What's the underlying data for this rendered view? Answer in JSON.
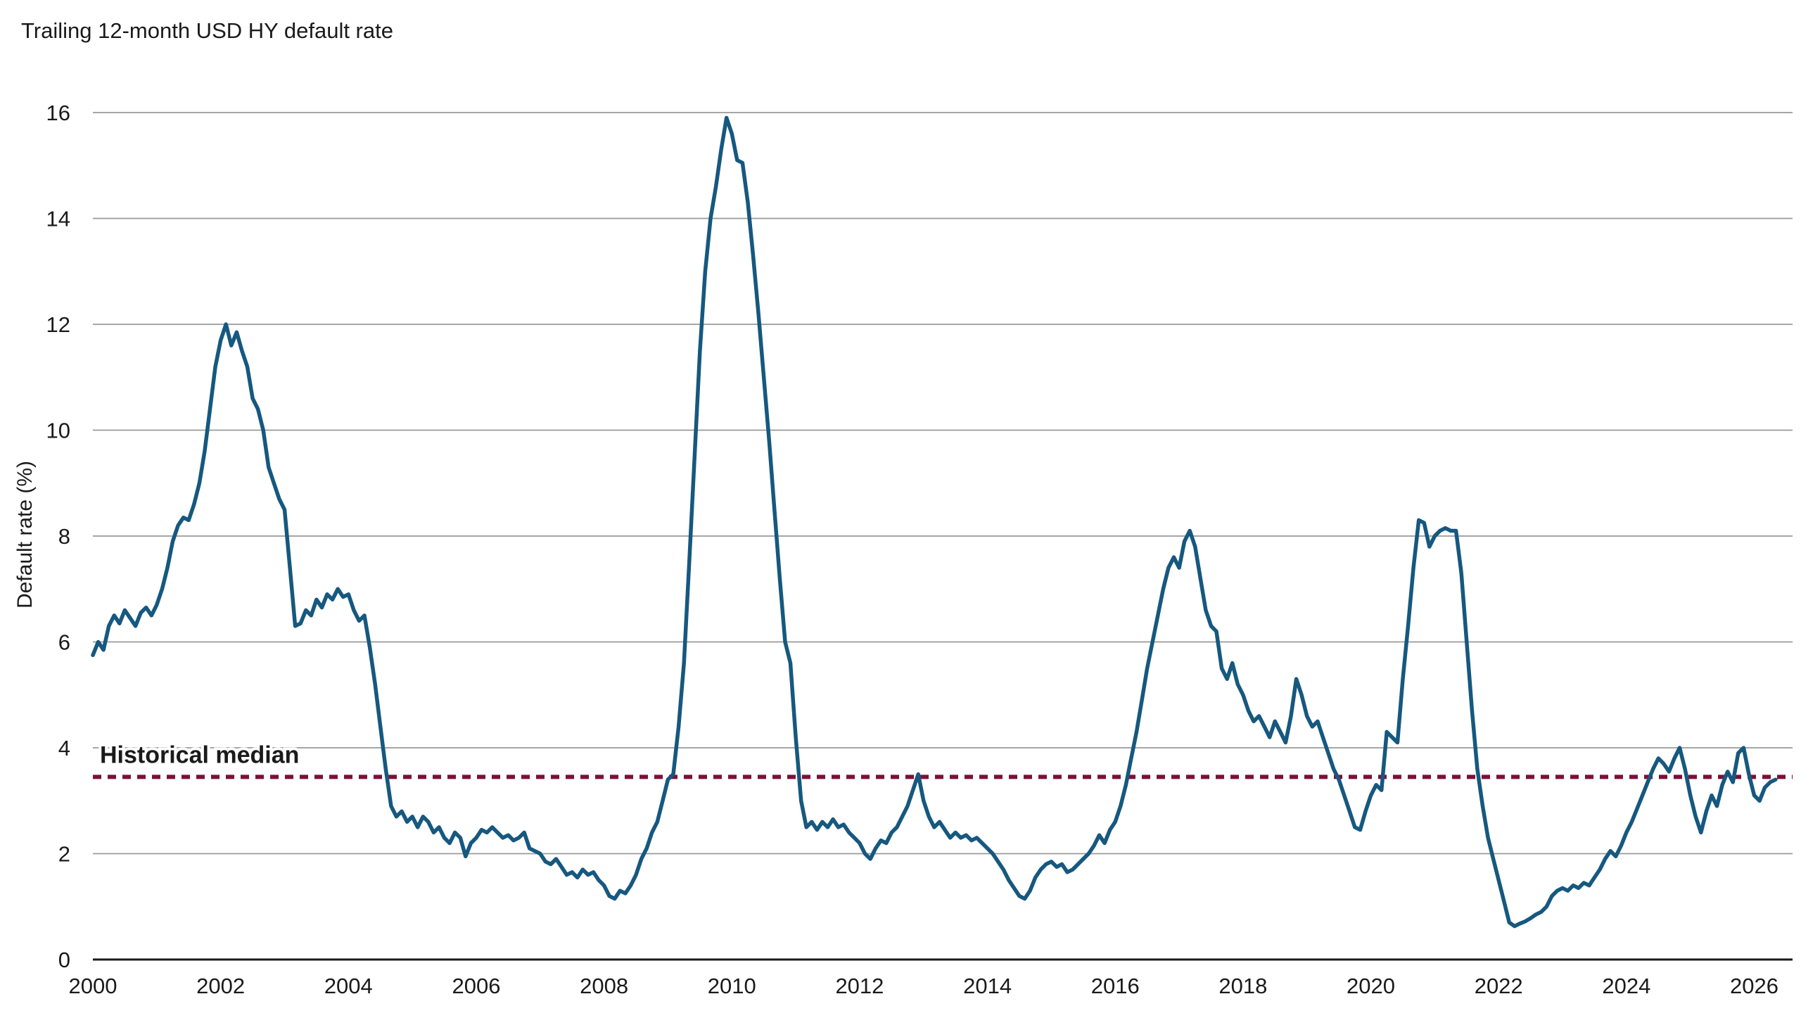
{
  "chart": {
    "title": "Trailing 12-month USD HY default rate",
    "ylabel": "Default rate (%)"
  },
  "chart_data": {
    "type": "line",
    "title": "Trailing 12-month USD HY default rate",
    "xlabel": "",
    "ylabel": "Default rate (%)",
    "xlim": [
      2000,
      2026.6
    ],
    "ylim": [
      0,
      16
    ],
    "x_ticks": [
      2000,
      2002,
      2004,
      2006,
      2008,
      2010,
      2012,
      2014,
      2016,
      2018,
      2020,
      2022,
      2024,
      2026
    ],
    "y_ticks": [
      0,
      2,
      4,
      6,
      8,
      10,
      12,
      14,
      16
    ],
    "grid": "horizontal",
    "legend": "none",
    "grid_color": "#9a9a9a",
    "axis_color": "#1a1a1a",
    "text_color": "#1a1a1a",
    "x_start_year": 2000,
    "x_interval_months": 1,
    "reference_line": {
      "label": "Historical median",
      "value": 3.45,
      "color": "#7c1038",
      "style": "dashed"
    },
    "series": [
      {
        "name": "Trailing 12-month USD HY default rate",
        "color": "#16587f",
        "values": [
          5.75,
          6.0,
          5.85,
          6.3,
          6.5,
          6.35,
          6.6,
          6.45,
          6.3,
          6.55,
          6.65,
          6.5,
          6.7,
          7.0,
          7.4,
          7.9,
          8.2,
          8.35,
          8.3,
          8.6,
          9.0,
          9.6,
          10.4,
          11.2,
          11.7,
          12.0,
          11.6,
          11.85,
          11.5,
          11.2,
          10.6,
          10.4,
          10.0,
          9.3,
          9.0,
          8.7,
          8.5,
          7.4,
          6.3,
          6.35,
          6.6,
          6.5,
          6.8,
          6.65,
          6.9,
          6.8,
          7.0,
          6.85,
          6.9,
          6.6,
          6.4,
          6.5,
          5.9,
          5.2,
          4.4,
          3.6,
          2.9,
          2.7,
          2.8,
          2.6,
          2.7,
          2.5,
          2.7,
          2.6,
          2.4,
          2.5,
          2.3,
          2.2,
          2.4,
          2.3,
          1.95,
          2.2,
          2.3,
          2.45,
          2.4,
          2.5,
          2.4,
          2.3,
          2.35,
          2.25,
          2.3,
          2.4,
          2.1,
          2.05,
          2.0,
          1.85,
          1.8,
          1.9,
          1.75,
          1.6,
          1.65,
          1.55,
          1.7,
          1.6,
          1.65,
          1.5,
          1.4,
          1.2,
          1.15,
          1.3,
          1.25,
          1.4,
          1.6,
          1.9,
          2.1,
          2.4,
          2.6,
          3.0,
          3.4,
          3.5,
          4.4,
          5.6,
          7.5,
          9.5,
          11.5,
          13.0,
          14.0,
          14.6,
          15.3,
          15.9,
          15.6,
          15.1,
          15.05,
          14.3,
          13.3,
          12.2,
          11.0,
          9.8,
          8.5,
          7.2,
          6.0,
          5.6,
          4.2,
          3.0,
          2.5,
          2.6,
          2.45,
          2.6,
          2.5,
          2.65,
          2.5,
          2.55,
          2.4,
          2.3,
          2.2,
          2.0,
          1.9,
          2.1,
          2.25,
          2.2,
          2.4,
          2.5,
          2.7,
          2.9,
          3.2,
          3.5,
          3.0,
          2.7,
          2.5,
          2.6,
          2.45,
          2.3,
          2.4,
          2.3,
          2.35,
          2.25,
          2.3,
          2.2,
          2.1,
          2.0,
          1.85,
          1.7,
          1.5,
          1.35,
          1.2,
          1.15,
          1.3,
          1.55,
          1.7,
          1.8,
          1.85,
          1.75,
          1.8,
          1.65,
          1.7,
          1.8,
          1.9,
          2.0,
          2.15,
          2.35,
          2.2,
          2.45,
          2.6,
          2.9,
          3.3,
          3.8,
          4.3,
          4.9,
          5.5,
          6.0,
          6.5,
          7.0,
          7.4,
          7.6,
          7.4,
          7.9,
          8.1,
          7.8,
          7.2,
          6.6,
          6.3,
          6.2,
          5.5,
          5.3,
          5.6,
          5.2,
          5.0,
          4.7,
          4.5,
          4.6,
          4.4,
          4.2,
          4.5,
          4.3,
          4.1,
          4.6,
          5.3,
          5.0,
          4.6,
          4.4,
          4.5,
          4.2,
          3.9,
          3.6,
          3.4,
          3.1,
          2.8,
          2.5,
          2.45,
          2.8,
          3.1,
          3.3,
          3.2,
          4.3,
          4.2,
          4.1,
          5.3,
          6.3,
          7.4,
          8.3,
          8.25,
          7.8,
          8.0,
          8.1,
          8.15,
          8.1,
          8.1,
          7.3,
          6.0,
          4.7,
          3.6,
          2.9,
          2.3,
          1.9,
          1.5,
          1.1,
          0.7,
          0.63,
          0.68,
          0.72,
          0.78,
          0.85,
          0.9,
          1.0,
          1.2,
          1.3,
          1.35,
          1.3,
          1.4,
          1.35,
          1.45,
          1.4,
          1.55,
          1.7,
          1.9,
          2.05,
          1.95,
          2.15,
          2.4,
          2.6,
          2.85,
          3.1,
          3.35,
          3.6,
          3.8,
          3.7,
          3.55,
          3.8,
          4.0,
          3.6,
          3.1,
          2.7,
          2.4,
          2.8,
          3.1,
          2.9,
          3.3,
          3.55,
          3.35,
          3.9,
          4.0,
          3.5,
          3.1,
          3.0,
          3.25,
          3.35,
          3.4
        ]
      }
    ]
  }
}
